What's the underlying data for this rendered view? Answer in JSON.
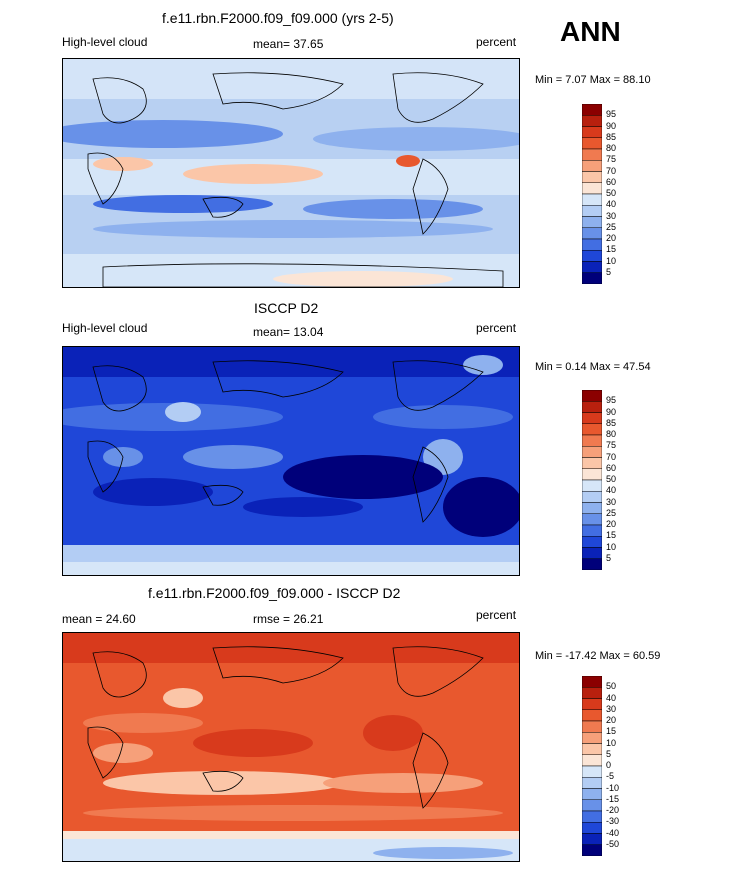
{
  "header": {
    "season": "ANN"
  },
  "panels": [
    {
      "title": "f.e11.rbn.F2000.f09_f09.000 (yrs 2-5)",
      "left_label": "High-level cloud",
      "center_label": "mean=  37.65",
      "right_label": "percent",
      "minmax": "Min =   7.07 Max =   88.10",
      "colorbar": {
        "labels": [
          "95",
          "90",
          "85",
          "80",
          "75",
          "70",
          "60",
          "50",
          "40",
          "30",
          "25",
          "20",
          "15",
          "10",
          "5"
        ],
        "colors": [
          "#8b0000",
          "#b8200e",
          "#d83a1c",
          "#e8582e",
          "#f07a50",
          "#f6a07a",
          "#fbc6a8",
          "#fbe5d6",
          "#d6e6f8",
          "#b3cdf4",
          "#8eb1ee",
          "#6891e8",
          "#426ee2",
          "#1f47d8",
          "#0a22b8",
          "#00007a"
        ]
      }
    },
    {
      "title": "ISCCP D2",
      "left_label": "High-level cloud",
      "center_label": "mean=  13.04",
      "right_label": "percent",
      "minmax": "Min =   0.14 Max =   47.54",
      "colorbar": {
        "labels": [
          "95",
          "90",
          "85",
          "80",
          "75",
          "70",
          "60",
          "50",
          "40",
          "30",
          "25",
          "20",
          "15",
          "10",
          "5"
        ],
        "colors": [
          "#8b0000",
          "#b8200e",
          "#d83a1c",
          "#e8582e",
          "#f07a50",
          "#f6a07a",
          "#fbc6a8",
          "#fbe5d6",
          "#d6e6f8",
          "#b3cdf4",
          "#8eb1ee",
          "#6891e8",
          "#426ee2",
          "#1f47d8",
          "#0a22b8",
          "#00007a"
        ]
      }
    },
    {
      "title": "f.e11.rbn.F2000.f09_f09.000 - ISCCP D2",
      "left_label": "mean =  24.60",
      "center_label": "rmse =  26.21",
      "right_label": "percent",
      "minmax": "Min = -17.42 Max =   60.59",
      "colorbar": {
        "labels": [
          "50",
          "40",
          "30",
          "20",
          "15",
          "10",
          "5",
          "0",
          "-5",
          "-10",
          "-15",
          "-20",
          "-30",
          "-40",
          "-50"
        ],
        "colors": [
          "#8b0000",
          "#b8200e",
          "#d83a1c",
          "#e8582e",
          "#f07a50",
          "#f6a07a",
          "#fbc6a8",
          "#fbe5d6",
          "#d6e6f8",
          "#b3cdf4",
          "#8eb1ee",
          "#6891e8",
          "#426ee2",
          "#1f47d8",
          "#0a22b8",
          "#00007a"
        ]
      }
    }
  ],
  "chart_data": [
    {
      "type": "heatmap",
      "title": "f.e11.rbn.F2000.f09_f09.000 (yrs 2-5)",
      "variable": "High-level cloud",
      "units": "percent",
      "mean": 37.65,
      "min": 7.07,
      "max": 88.1,
      "levels": [
        5,
        10,
        15,
        20,
        25,
        30,
        40,
        50,
        60,
        70,
        75,
        80,
        85,
        90,
        95
      ]
    },
    {
      "type": "heatmap",
      "title": "ISCCP D2",
      "variable": "High-level cloud",
      "units": "percent",
      "mean": 13.04,
      "min": 0.14,
      "max": 47.54,
      "levels": [
        5,
        10,
        15,
        20,
        25,
        30,
        40,
        50,
        60,
        70,
        75,
        80,
        85,
        90,
        95
      ]
    },
    {
      "type": "heatmap",
      "title": "f.e11.rbn.F2000.f09_f09.000 - ISCCP D2",
      "units": "percent",
      "mean": 24.6,
      "rmse": 26.21,
      "min": -17.42,
      "max": 60.59,
      "levels": [
        -50,
        -40,
        -30,
        -20,
        -15,
        -10,
        -5,
        0,
        5,
        10,
        15,
        20,
        30,
        40,
        50
      ]
    }
  ]
}
